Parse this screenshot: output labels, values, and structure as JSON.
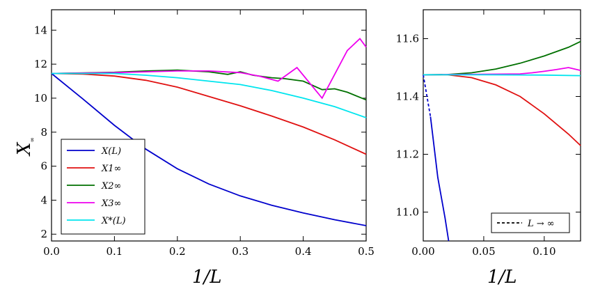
{
  "chart_data": [
    {
      "type": "line",
      "panel": "left",
      "xlabel": "1/L",
      "ylabel": "X∞",
      "xlim": [
        0,
        0.5
      ],
      "ylim": [
        1.6,
        15.2
      ],
      "xticks": [
        0.0,
        0.1,
        0.2,
        0.3,
        0.4,
        0.5
      ],
      "xtick_labels": [
        "0.0",
        "0.1",
        "0.2",
        "0.3",
        "0.4",
        "0.5"
      ],
      "yticks": [
        2,
        4,
        6,
        8,
        10,
        12,
        14
      ],
      "ytick_labels": [
        "2",
        "4",
        "6",
        "8",
        "10",
        "12",
        "14"
      ],
      "legend": {
        "position": "lower-left",
        "entries": [
          {
            "label": "X(L)",
            "color": "#0000cc"
          },
          {
            "label": "X1∞",
            "color": "#e01010"
          },
          {
            "label": "X2∞",
            "color": "#007000"
          },
          {
            "label": "X3∞",
            "color": "#ee00ee"
          },
          {
            "label": "X*(L)",
            "color": "#00e5ee"
          }
        ]
      },
      "series": [
        {
          "name": "X(L)",
          "color": "#0000cc",
          "x": [
            0.0,
            0.05,
            0.1,
            0.15,
            0.2,
            0.25,
            0.3,
            0.35,
            0.4,
            0.45,
            0.5
          ],
          "y": [
            11.45,
            9.95,
            8.4,
            7.0,
            5.85,
            4.95,
            4.25,
            3.7,
            3.25,
            2.85,
            2.5
          ]
        },
        {
          "name": "X1∞",
          "color": "#e01010",
          "x": [
            0.0,
            0.05,
            0.1,
            0.15,
            0.2,
            0.25,
            0.3,
            0.35,
            0.4,
            0.45,
            0.5
          ],
          "y": [
            11.45,
            11.42,
            11.3,
            11.05,
            10.65,
            10.1,
            9.55,
            8.95,
            8.3,
            7.55,
            6.7
          ]
        },
        {
          "name": "X2∞",
          "color": "#007000",
          "x": [
            0.0,
            0.1,
            0.15,
            0.2,
            0.25,
            0.28,
            0.3,
            0.32,
            0.35,
            0.37,
            0.4,
            0.43,
            0.45,
            0.47,
            0.5
          ],
          "y": [
            11.45,
            11.52,
            11.6,
            11.65,
            11.55,
            11.4,
            11.55,
            11.35,
            11.2,
            11.15,
            11.0,
            10.5,
            10.55,
            10.35,
            9.9
          ]
        },
        {
          "name": "X3∞",
          "color": "#ee00ee",
          "x": [
            0.0,
            0.1,
            0.15,
            0.2,
            0.25,
            0.3,
            0.33,
            0.36,
            0.39,
            0.43,
            0.47,
            0.49,
            0.5
          ],
          "y": [
            11.45,
            11.5,
            11.55,
            11.6,
            11.6,
            11.5,
            11.3,
            11.0,
            11.8,
            10.0,
            12.8,
            13.5,
            13.0
          ]
        },
        {
          "name": "X*(L)",
          "color": "#00e5ee",
          "x": [
            0.0,
            0.1,
            0.15,
            0.2,
            0.25,
            0.3,
            0.35,
            0.4,
            0.45,
            0.5
          ],
          "y": [
            11.45,
            11.45,
            11.35,
            11.2,
            11.0,
            10.8,
            10.45,
            10.0,
            9.5,
            8.85
          ]
        }
      ]
    },
    {
      "type": "line",
      "panel": "right",
      "xlabel": "1/L",
      "ylabel": "",
      "xlim": [
        0,
        0.13
      ],
      "ylim": [
        10.9,
        11.7
      ],
      "xticks": [
        0.0,
        0.05,
        0.1
      ],
      "xtick_labels": [
        "0.00",
        "0.05",
        "0.10"
      ],
      "yticks": [
        11.0,
        11.2,
        11.4,
        11.6
      ],
      "ytick_labels": [
        "11.0",
        "11.2",
        "11.4",
        "11.6"
      ],
      "legend": {
        "position": "lower-right",
        "entries": [
          {
            "label": "L → ∞",
            "color": "#000000",
            "style": "dashed"
          }
        ]
      },
      "series": [
        {
          "name": "X(L)",
          "color": "#0000cc",
          "x": [
            0.006,
            0.012,
            0.018,
            0.021
          ],
          "y": [
            11.33,
            11.12,
            10.98,
            10.9
          ]
        },
        {
          "name": "L → ∞",
          "color": "#0000cc",
          "style": "dashed",
          "x": [
            0.0,
            0.006
          ],
          "y": [
            11.475,
            11.33
          ]
        },
        {
          "name": "X1∞",
          "color": "#e01010",
          "x": [
            0.0,
            0.02,
            0.04,
            0.06,
            0.08,
            0.1,
            0.12,
            0.13
          ],
          "y": [
            11.475,
            11.475,
            11.465,
            11.44,
            11.4,
            11.34,
            11.27,
            11.23
          ]
        },
        {
          "name": "X2∞",
          "color": "#007000",
          "x": [
            0.0,
            0.02,
            0.04,
            0.06,
            0.08,
            0.1,
            0.12,
            0.13
          ],
          "y": [
            11.475,
            11.476,
            11.482,
            11.495,
            11.515,
            11.54,
            11.57,
            11.59
          ]
        },
        {
          "name": "X3∞",
          "color": "#ee00ee",
          "x": [
            0.0,
            0.08,
            0.09,
            0.1,
            0.11,
            0.12,
            0.13
          ],
          "y": [
            11.475,
            11.478,
            11.482,
            11.487,
            11.493,
            11.5,
            11.49
          ]
        },
        {
          "name": "X*(L)",
          "color": "#00e5ee",
          "x": [
            0.0,
            0.05,
            0.1,
            0.13
          ],
          "y": [
            11.475,
            11.475,
            11.474,
            11.472
          ]
        }
      ]
    }
  ]
}
